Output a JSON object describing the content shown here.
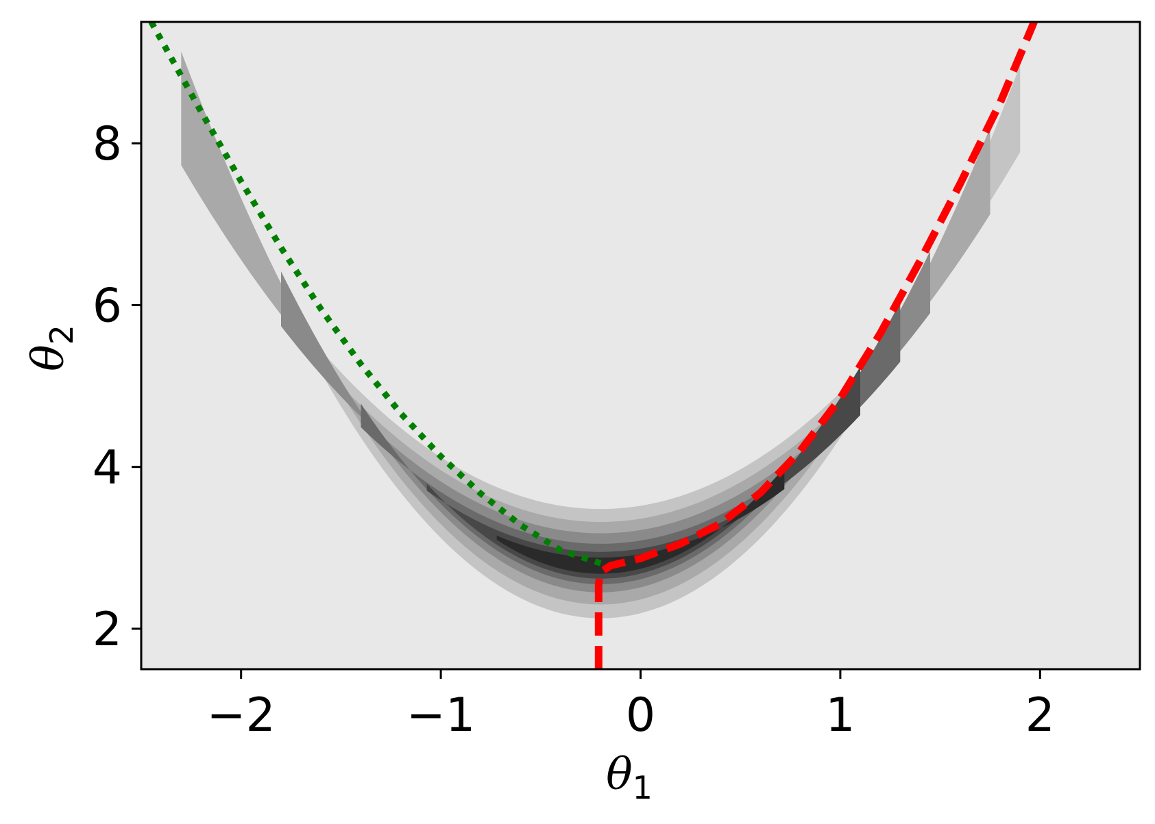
{
  "chart_data": {
    "type": "contour",
    "xlabel": "θ",
    "xlabel_sub": "1",
    "ylabel": "θ",
    "ylabel_sub": "2",
    "xlim": [
      -2.5,
      2.5
    ],
    "ylim": [
      1.5,
      9.5
    ],
    "xticks": [
      -2,
      -1,
      0,
      1,
      2
    ],
    "xtick_labels": [
      "−2",
      "−1",
      "0",
      "1",
      "2"
    ],
    "yticks": [
      2,
      4,
      6,
      8
    ],
    "ytick_labels": [
      "2",
      "4",
      "6",
      "8"
    ],
    "grid": false,
    "legend": "none",
    "colors": {
      "background_fill": "#e8e8e8",
      "contour_levels": [
        "#c4c4c4",
        "#a9a9a9",
        "#8a8a8a",
        "#6a6a6a",
        "#484848",
        "#2a2a2a"
      ],
      "green_curve": "#007f00",
      "red_curve": "#ff0000"
    },
    "contour_bands": [
      {
        "level": 1,
        "x_range": [
          -2.27,
          1.9
        ],
        "upper_min_y": 3.48,
        "lower_min_y": 2.13
      },
      {
        "level": 2,
        "x_range": [
          -2.3,
          1.75
        ],
        "upper_min_y": 3.32,
        "lower_min_y": 2.3
      },
      {
        "level": 3,
        "x_range": [
          -1.8,
          1.45
        ],
        "upper_min_y": 3.18,
        "lower_min_y": 2.45
      },
      {
        "level": 4,
        "x_range": [
          -1.4,
          1.3
        ],
        "upper_min_y": 3.05,
        "lower_min_y": 2.55
      },
      {
        "level": 5,
        "x_range": [
          -1.07,
          1.1
        ],
        "upper_min_y": 2.95,
        "lower_min_y": 2.62
      },
      {
        "level": 6,
        "x_range": [
          -0.72,
          0.72
        ],
        "upper_min_y": 2.88,
        "lower_min_y": 2.68
      }
    ],
    "series": [
      {
        "style": "dotted",
        "color": "#007f00",
        "x": [
          -2.45,
          -2.2,
          -2.0,
          -1.8,
          -1.6,
          -1.4,
          -1.2,
          -1.0,
          -0.8,
          -0.6,
          -0.4,
          -0.2
        ],
        "y": [
          9.5,
          8.39,
          7.53,
          6.71,
          5.95,
          5.27,
          4.66,
          4.13,
          3.67,
          3.28,
          2.97,
          2.81
        ]
      },
      {
        "style": "dashed",
        "color": "#ff0000",
        "x": [
          -0.21,
          -0.21,
          -0.21,
          -0.2,
          -0.15,
          0.0,
          0.2,
          0.4,
          0.6,
          0.8,
          1.0,
          1.2,
          1.4,
          1.6,
          1.8,
          1.97
        ],
        "y": [
          1.5,
          2.3,
          2.55,
          2.7,
          2.78,
          2.87,
          3.05,
          3.3,
          3.68,
          4.2,
          4.85,
          5.65,
          6.55,
          7.5,
          8.5,
          9.5
        ]
      }
    ]
  }
}
